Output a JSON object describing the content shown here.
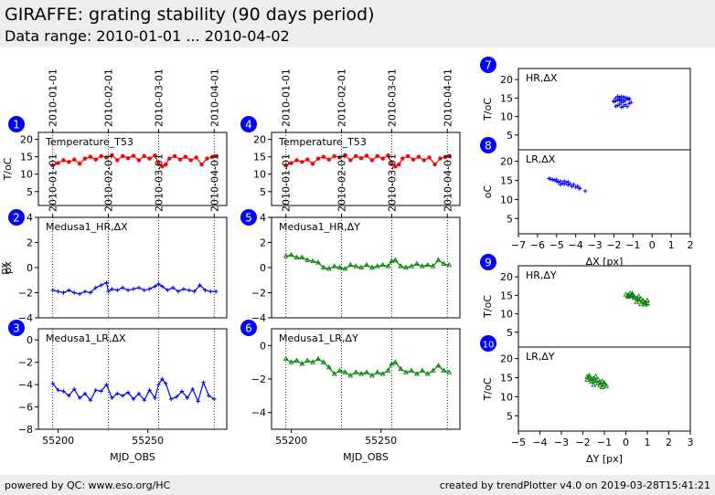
{
  "header": {
    "title": "GIRAFFE: grating stability (90 days period)",
    "subtitle": "Data range: 2010-01-01 ... 2010-04-02"
  },
  "footer": {
    "left": "powered by QC: www.eso.org/HC",
    "right": "created by trendPlotter v4.0 on 2019-03-28T15:41:21"
  },
  "colors": {
    "red": "#ff0000",
    "blue": "#0000ff",
    "green": "#008000",
    "badge": "#0000ff"
  },
  "chart_data": [
    {
      "id": 1,
      "type": "line",
      "badge": "1",
      "label": "Temperature_T53",
      "ylabel": "T/oC",
      "ylim": [
        1,
        22
      ],
      "yticks": [
        "5",
        "10",
        "15",
        "20"
      ],
      "xlim": [
        55189,
        55294
      ],
      "color": "red",
      "marker": "circle",
      "date_ticks": [
        "2010-01-01",
        "2010-02-01",
        "2010-03-01",
        "2010-04-01"
      ],
      "vlines": [
        55197,
        55228,
        55256,
        55287
      ],
      "x": [
        55197,
        55200,
        55203,
        55206,
        55209,
        55212,
        55215,
        55218,
        55221,
        55224,
        55227,
        55230,
        55233,
        55236,
        55239,
        55242,
        55245,
        55248,
        55251,
        55254,
        55256,
        55258,
        55260,
        55262,
        55265,
        55268,
        55271,
        55274,
        55277,
        55280,
        55283,
        55286,
        55288
      ],
      "y": [
        12.5,
        13.2,
        14.0,
        13.5,
        14.2,
        13.0,
        14.5,
        15.0,
        14.2,
        15.2,
        14.8,
        15.5,
        14.0,
        15.2,
        14.6,
        15.3,
        14.0,
        15.2,
        14.5,
        15.4,
        13.0,
        12.2,
        12.8,
        14.5,
        15.2,
        14.2,
        15.0,
        14.0,
        14.8,
        12.8,
        14.5,
        15.0,
        15.2
      ]
    },
    {
      "id": 2,
      "type": "line",
      "badge": "2",
      "label": "Medusa1_HR,ΔX",
      "ylabel": "px",
      "ylim": [
        -4,
        4
      ],
      "yticks": [
        "−4",
        "−2",
        "0",
        "2",
        "4"
      ],
      "xlim": [
        55189,
        55294
      ],
      "color": "blue",
      "marker": "plus",
      "date_ticks": [
        "2010-01-01",
        "2010-02-01",
        "2010-03-01",
        "2010-04-01"
      ],
      "vlines": [
        55197,
        55228,
        55256,
        55287
      ],
      "x": [
        55197,
        55200,
        55203,
        55206,
        55209,
        55212,
        55215,
        55218,
        55221,
        55224,
        55227,
        55228,
        55230,
        55233,
        55236,
        55239,
        55242,
        55245,
        55248,
        55251,
        55254,
        55256,
        55258,
        55261,
        55264,
        55267,
        55270,
        55273,
        55276,
        55279,
        55282,
        55285,
        55288
      ],
      "y": [
        -1.8,
        -1.9,
        -2.0,
        -1.8,
        -2.0,
        -2.1,
        -1.9,
        -2.0,
        -1.6,
        -1.4,
        -1.2,
        -1.9,
        -1.7,
        -1.8,
        -1.6,
        -1.8,
        -1.7,
        -1.6,
        -1.8,
        -1.7,
        -1.5,
        -1.3,
        -1.5,
        -1.8,
        -1.6,
        -1.9,
        -1.7,
        -1.8,
        -1.9,
        -1.4,
        -1.8,
        -1.9,
        -1.9
      ]
    },
    {
      "id": 3,
      "type": "line",
      "badge": "3",
      "label": "Medusa1_LR,ΔX",
      "ylabel": "",
      "ylim": [
        -8,
        1
      ],
      "yticks": [
        "−8",
        "−6",
        "−4",
        "−2",
        "0"
      ],
      "xlim": [
        55189,
        55294
      ],
      "color": "blue",
      "marker": "plus",
      "xticks": [
        "55200",
        "55250"
      ],
      "xtick_values": [
        55200,
        55250
      ],
      "xlabel": "MJD_OBS",
      "vlines": [
        55197,
        55228,
        55256,
        55287
      ],
      "x": [
        55197,
        55200,
        55203,
        55206,
        55209,
        55212,
        55215,
        55218,
        55221,
        55224,
        55227,
        55230,
        55233,
        55236,
        55239,
        55242,
        55245,
        55248,
        55251,
        55254,
        55256,
        55258,
        55260,
        55263,
        55266,
        55269,
        55272,
        55275,
        55278,
        55281,
        55284,
        55287
      ],
      "y": [
        -3.9,
        -4.5,
        -4.6,
        -5.0,
        -4.4,
        -5.2,
        -4.8,
        -5.4,
        -4.5,
        -4.6,
        -4.0,
        -5.2,
        -4.8,
        -5.0,
        -4.7,
        -5.3,
        -4.8,
        -5.4,
        -4.5,
        -5.2,
        -4.0,
        -3.5,
        -3.9,
        -5.3,
        -5.1,
        -4.6,
        -5.2,
        -4.4,
        -5.5,
        -3.8,
        -5.0,
        -5.3
      ]
    },
    {
      "id": 4,
      "type": "line",
      "badge": "4",
      "label": "Temperature_T53",
      "ylabel": "",
      "ylim": [
        1,
        22
      ],
      "yticks": [
        "5",
        "10",
        "15",
        "20"
      ],
      "xlim": [
        55189,
        55294
      ],
      "color": "red",
      "marker": "circle",
      "date_ticks": [
        "2010-01-01",
        "2010-02-01",
        "2010-03-01",
        "2010-04-01"
      ],
      "vlines": [
        55197,
        55228,
        55256,
        55287
      ],
      "x": [
        55197,
        55200,
        55203,
        55206,
        55209,
        55212,
        55215,
        55218,
        55221,
        55224,
        55227,
        55230,
        55233,
        55236,
        55239,
        55242,
        55245,
        55248,
        55251,
        55254,
        55256,
        55258,
        55260,
        55262,
        55265,
        55268,
        55271,
        55274,
        55277,
        55280,
        55283,
        55286,
        55288
      ],
      "y": [
        12.5,
        13.2,
        14.0,
        13.5,
        14.2,
        13.0,
        14.5,
        15.0,
        14.2,
        15.2,
        14.8,
        15.5,
        14.0,
        15.2,
        14.6,
        15.3,
        14.0,
        15.2,
        14.5,
        15.4,
        13.0,
        12.2,
        12.8,
        14.5,
        15.2,
        14.2,
        15.0,
        14.0,
        14.8,
        12.8,
        14.5,
        15.0,
        15.2
      ]
    },
    {
      "id": 5,
      "type": "line",
      "badge": "5",
      "label": "Medusa1_HR,ΔY",
      "ylabel": "",
      "ylim": [
        -4,
        4
      ],
      "yticks": [
        "−4",
        "−2",
        "0",
        "2",
        "4"
      ],
      "xlim": [
        55189,
        55294
      ],
      "color": "green",
      "marker": "triangle",
      "date_ticks": [
        "2010-01-01",
        "2010-02-01",
        "2010-03-01",
        "2010-04-01"
      ],
      "vlines": [
        55197,
        55228,
        55256,
        55287
      ],
      "x": [
        55197,
        55200,
        55203,
        55206,
        55209,
        55212,
        55215,
        55218,
        55221,
        55224,
        55227,
        55230,
        55233,
        55236,
        55239,
        55242,
        55245,
        55248,
        55251,
        55254,
        55256,
        55258,
        55261,
        55264,
        55267,
        55270,
        55273,
        55276,
        55279,
        55282,
        55285,
        55288
      ],
      "y": [
        0.9,
        1.0,
        0.8,
        0.8,
        0.6,
        0.5,
        0.4,
        0.0,
        -0.1,
        0.1,
        0.0,
        -0.1,
        0.2,
        0.1,
        0.0,
        0.2,
        0.0,
        0.1,
        0.2,
        0.1,
        0.5,
        0.6,
        0.1,
        0.0,
        0.1,
        0.3,
        0.1,
        0.2,
        0.1,
        0.6,
        0.3,
        0.2
      ]
    },
    {
      "id": 6,
      "type": "line",
      "badge": "6",
      "label": "Medusa1_LR,ΔY",
      "ylabel": "",
      "ylim": [
        -5,
        1
      ],
      "yticks": [
        "−4",
        "−2",
        "0"
      ],
      "xlim": [
        55189,
        55294
      ],
      "color": "green",
      "marker": "triangle",
      "xticks": [
        "55200",
        "55250"
      ],
      "xtick_values": [
        55200,
        55250
      ],
      "xlabel": "MJD_OBS",
      "vlines": [
        55197,
        55228,
        55256,
        55287
      ],
      "x": [
        55197,
        55200,
        55203,
        55206,
        55209,
        55212,
        55215,
        55218,
        55221,
        55224,
        55227,
        55230,
        55233,
        55236,
        55239,
        55242,
        55245,
        55248,
        55251,
        55254,
        55256,
        55258,
        55261,
        55264,
        55267,
        55270,
        55273,
        55276,
        55279,
        55282,
        55285,
        55288
      ],
      "y": [
        -0.8,
        -1.0,
        -0.9,
        -1.1,
        -0.9,
        -1.0,
        -0.8,
        -1.0,
        -1.3,
        -1.7,
        -1.5,
        -1.6,
        -1.8,
        -1.6,
        -1.7,
        -1.6,
        -1.8,
        -1.6,
        -1.7,
        -1.5,
        -1.1,
        -1.0,
        -1.4,
        -1.6,
        -1.5,
        -1.7,
        -1.5,
        -1.7,
        -1.5,
        -1.2,
        -1.5,
        -1.6
      ]
    },
    {
      "id": 7,
      "type": "scatter",
      "badge": "7",
      "label": "HR,ΔX",
      "ylabel": "T/oC",
      "ylim": [
        1,
        23
      ],
      "yticks": [
        "5",
        "10",
        "15",
        "20"
      ],
      "xlim": [
        -7,
        2
      ],
      "color": "blue",
      "marker": "plus",
      "x": [
        -1.9,
        -1.8,
        -1.7,
        -1.6,
        -1.5,
        -1.4,
        -1.3,
        -1.2,
        -1.1,
        -2.0,
        -1.9,
        -1.8,
        -1.7,
        -1.6,
        -1.5,
        -1.4,
        -1.3,
        -1.2,
        -1.9,
        -1.7,
        -1.5,
        -1.3,
        -1.8,
        -1.6,
        -1.4,
        -1.7,
        -1.5,
        -2.0,
        -1.2,
        -1.6
      ],
      "y": [
        12.8,
        13.0,
        13.3,
        12.5,
        12.8,
        13.2,
        12.7,
        13.5,
        13.8,
        14.0,
        14.2,
        14.5,
        14.3,
        14.6,
        14.0,
        14.4,
        14.8,
        14.6,
        15.0,
        15.2,
        15.3,
        15.0,
        15.5,
        15.4,
        15.1,
        14.8,
        14.5,
        14.3,
        14.9,
        13.8
      ]
    },
    {
      "id": 8,
      "type": "scatter",
      "badge": "8",
      "label": "LR,ΔX",
      "ylabel": "oC",
      "ylim": [
        1,
        23
      ],
      "yticks": [
        "5",
        "10",
        "15",
        "20"
      ],
      "xlim": [
        -7,
        2
      ],
      "color": "blue",
      "marker": "plus",
      "xticks": [
        "−7",
        "−6",
        "−5",
        "−4",
        "−3",
        "−2",
        "−1",
        "0",
        "1",
        "2"
      ],
      "xtick_values": [
        -7,
        -6,
        -5,
        -4,
        -3,
        -2,
        -1,
        0,
        1,
        2
      ],
      "xlabel": "ΔX [px]",
      "x": [
        -5.4,
        -5.3,
        -5.2,
        -5.1,
        -5.0,
        -4.9,
        -4.8,
        -4.7,
        -4.6,
        -4.5,
        -4.4,
        -4.3,
        -4.2,
        -4.1,
        -4.0,
        -3.9,
        -3.8,
        -3.5,
        -5.0,
        -4.6,
        -4.2,
        -3.8,
        -4.4,
        -4.8
      ],
      "y": [
        15.5,
        15.3,
        15.2,
        15.0,
        14.8,
        14.5,
        14.8,
        14.2,
        14.0,
        14.4,
        13.8,
        14.1,
        13.5,
        13.9,
        13.2,
        13.5,
        13.0,
        12.2,
        15.2,
        14.8,
        13.4,
        12.8,
        14.6,
        13.9
      ]
    },
    {
      "id": 9,
      "type": "scatter",
      "badge": "9",
      "label": "HR,ΔY",
      "ylabel": "T/oC",
      "ylim": [
        1,
        23
      ],
      "yticks": [
        "5",
        "10",
        "15",
        "20"
      ],
      "xlim": [
        -5,
        3
      ],
      "color": "green",
      "marker": "triangle",
      "x": [
        0.0,
        0.1,
        0.2,
        0.3,
        0.4,
        0.5,
        0.6,
        0.7,
        0.8,
        0.9,
        1.0,
        0.1,
        0.3,
        0.5,
        0.7,
        0.2,
        0.4,
        0.6,
        0.8,
        1.0,
        0.3,
        0.6,
        0.9
      ],
      "y": [
        15.2,
        15.0,
        14.8,
        15.4,
        14.5,
        14.2,
        13.8,
        14.0,
        13.5,
        13.0,
        12.8,
        14.6,
        14.9,
        13.2,
        12.6,
        15.5,
        14.3,
        13.9,
        13.3,
        13.6,
        15.1,
        14.7,
        12.5
      ]
    },
    {
      "id": 10,
      "type": "scatter",
      "badge": "10",
      "label": "LR,ΔY",
      "ylabel": "T/oC",
      "ylim": [
        1,
        23
      ],
      "yticks": [
        "5",
        "10",
        "15",
        "20"
      ],
      "xlim": [
        -5,
        3
      ],
      "color": "green",
      "marker": "triangle",
      "xticks": [
        "−5",
        "−4",
        "−3",
        "−2",
        "−1",
        "0",
        "1",
        "2",
        "3"
      ],
      "xtick_values": [
        -5,
        -4,
        -3,
        -2,
        -1,
        0,
        1,
        2,
        3
      ],
      "xlabel": "ΔY [px]",
      "x": [
        -1.8,
        -1.7,
        -1.6,
        -1.5,
        -1.4,
        -1.3,
        -1.2,
        -1.1,
        -1.0,
        -0.9,
        -1.7,
        -1.5,
        -1.3,
        -1.1,
        -1.6,
        -1.4,
        -1.2,
        -1.0,
        -1.8,
        -1.5
      ],
      "y": [
        15.2,
        15.0,
        14.6,
        14.8,
        14.2,
        14.5,
        13.8,
        14.0,
        13.2,
        12.8,
        15.5,
        14.1,
        13.5,
        12.5,
        13.9,
        15.3,
        12.9,
        13.6,
        14.4,
        13.1
      ]
    }
  ]
}
